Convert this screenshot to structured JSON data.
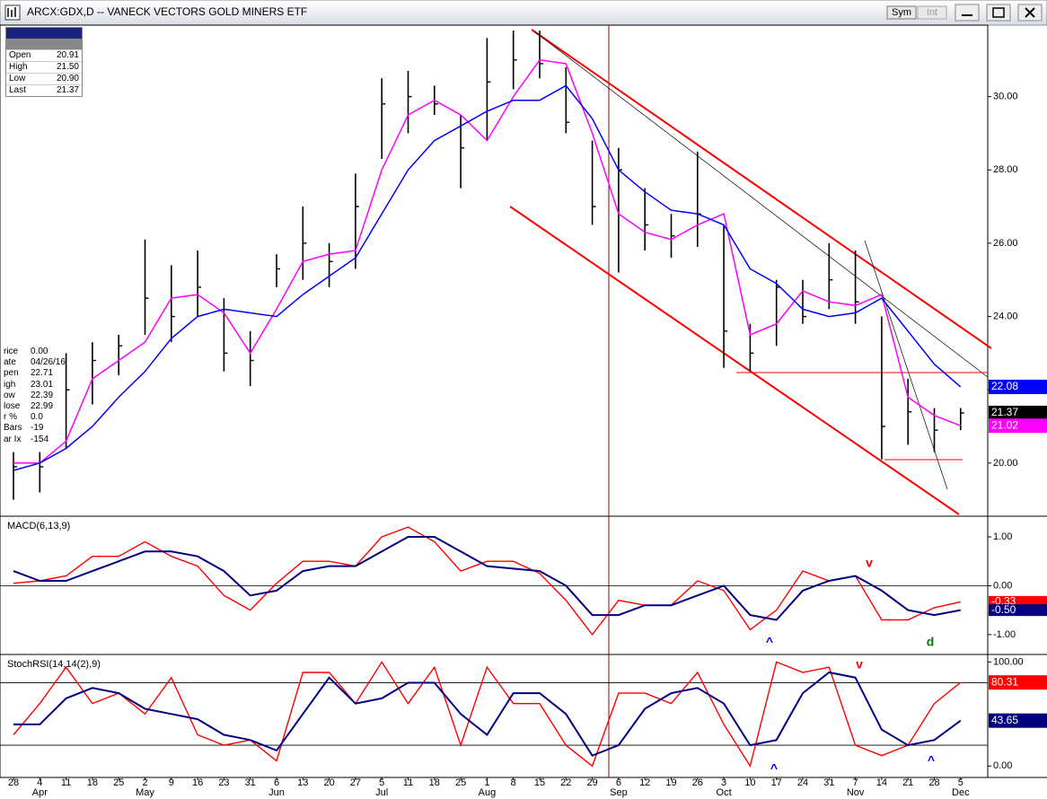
{
  "window": {
    "title": "ARCX:GDX,D -- VANECK VECTORS GOLD MINERS ETF",
    "buttons": [
      "Sym",
      "Int"
    ]
  },
  "info_box": {
    "rows": [
      [
        "Open",
        "20.91"
      ],
      [
        "High",
        "21.50"
      ],
      [
        "Low",
        "20.90"
      ],
      [
        "Last",
        "21.37"
      ]
    ]
  },
  "data_window": {
    "rows": [
      [
        "rice",
        "0.00"
      ],
      [
        "ate",
        "04/26/16"
      ],
      [
        "pen",
        "22.71"
      ],
      [
        "igh",
        "23.01"
      ],
      [
        "ow",
        "22.39"
      ],
      [
        "lose",
        "22.99"
      ],
      [
        "r %",
        "0.0"
      ],
      [
        "Bars",
        "-19"
      ],
      [
        "ar Ix",
        "-154"
      ]
    ]
  },
  "chart_data": [
    {
      "type": "ohlc",
      "categories": [
        "28",
        "4",
        "11",
        "18",
        "25",
        "2",
        "9",
        "16",
        "23",
        "31",
        "6",
        "13",
        "20",
        "27",
        "5",
        "11",
        "18",
        "25",
        "1",
        "8",
        "15",
        "22",
        "29",
        "6",
        "12",
        "19",
        "26",
        "3",
        "10",
        "17",
        "24",
        "31",
        "7",
        "14",
        "21",
        "28",
        "5"
      ],
      "months": [
        null,
        "Apr",
        null,
        null,
        null,
        "May",
        null,
        null,
        null,
        null,
        "Jun",
        null,
        null,
        null,
        "Jul",
        null,
        null,
        null,
        "Aug",
        null,
        null,
        null,
        null,
        "Sep",
        null,
        null,
        null,
        "Oct",
        null,
        null,
        null,
        null,
        "Nov",
        null,
        null,
        null,
        "Dec"
      ],
      "high": [
        20.3,
        20.3,
        23.0,
        23.3,
        23.5,
        26.1,
        25.4,
        25.8,
        24.5,
        23.6,
        25.7,
        27.0,
        26.0,
        27.9,
        30.5,
        30.7,
        30.3,
        29.5,
        31.6,
        31.8,
        31.8,
        30.8,
        28.8,
        28.6,
        27.5,
        26.8,
        28.5,
        26.5,
        23.8,
        25.0,
        25.0,
        26.0,
        25.8,
        24.0,
        22.3,
        21.5,
        21.5
      ],
      "low": [
        19.0,
        19.2,
        20.4,
        21.6,
        22.4,
        23.5,
        23.3,
        24.0,
        22.5,
        22.1,
        24.8,
        25.0,
        24.8,
        25.3,
        28.3,
        29.0,
        29.5,
        27.5,
        28.8,
        30.2,
        30.5,
        29.0,
        26.5,
        25.2,
        25.8,
        25.6,
        25.9,
        22.6,
        22.5,
        23.2,
        23.8,
        24.2,
        23.8,
        20.1,
        20.5,
        20.3,
        20.9
      ],
      "close": [
        19.9,
        19.9,
        22.0,
        22.8,
        23.2,
        24.5,
        24.0,
        24.8,
        23.0,
        22.8,
        25.3,
        26.0,
        25.5,
        27.0,
        29.8,
        30.0,
        29.8,
        28.6,
        30.4,
        31.0,
        30.9,
        29.3,
        27.0,
        28.0,
        26.5,
        26.2,
        26.8,
        23.6,
        23.0,
        24.8,
        24.0,
        25.0,
        24.4,
        21.0,
        21.4,
        20.9,
        21.37
      ],
      "color": "#000000",
      "series": [
        {
          "color": "#ff00ff",
          "values": [
            20.0,
            20.0,
            20.6,
            22.3,
            22.8,
            23.3,
            24.5,
            24.6,
            24.1,
            23.0,
            24.2,
            25.5,
            25.7,
            25.8,
            28.0,
            29.5,
            29.9,
            29.5,
            28.8,
            30.0,
            31.0,
            30.9,
            29.0,
            26.8,
            26.3,
            26.1,
            26.5,
            26.8,
            23.5,
            23.8,
            24.7,
            24.4,
            24.3,
            24.6,
            21.8,
            21.3,
            21.02
          ]
        },
        {
          "color": "#0000ff",
          "values": [
            19.8,
            20.0,
            20.4,
            21.0,
            21.8,
            22.5,
            23.4,
            24.0,
            24.2,
            24.1,
            24.0,
            24.6,
            25.1,
            25.6,
            26.8,
            28.0,
            28.8,
            29.2,
            29.6,
            29.9,
            29.9,
            30.3,
            29.4,
            28.0,
            27.4,
            26.9,
            26.8,
            26.5,
            25.3,
            24.9,
            24.2,
            24.0,
            24.1,
            24.5,
            23.6,
            22.7,
            22.08
          ]
        }
      ],
      "ylim": [
        18.6,
        31.95
      ],
      "yticks": [
        {
          "value": 20,
          "label": "20.00"
        },
        {
          "value": 22,
          "label": "22.00"
        },
        {
          "value": 24,
          "label": "24.00"
        },
        {
          "value": 26,
          "label": "26.00"
        },
        {
          "value": 28,
          "label": "28.00"
        },
        {
          "value": 30,
          "label": "30.00"
        }
      ],
      "flags": [
        {
          "value": 22.08,
          "label": "22.08",
          "color": "#0000ff"
        },
        {
          "value": 21.37,
          "label": "21.37",
          "color": "#000000"
        },
        {
          "value": 21.02,
          "label": "21.02",
          "color": "#ff00ff"
        }
      ]
    },
    {
      "type": "line",
      "title": "MACD(6,13,9)",
      "series": [
        {
          "color": "#ff0000",
          "values": [
            0.05,
            0.1,
            0.2,
            0.6,
            0.6,
            0.9,
            0.6,
            0.4,
            -0.2,
            -0.5,
            0.05,
            0.5,
            0.5,
            0.4,
            1.0,
            1.2,
            0.9,
            0.3,
            0.5,
            0.5,
            0.25,
            -0.3,
            -1.0,
            -0.3,
            -0.4,
            -0.4,
            0.1,
            -0.1,
            -0.9,
            -0.5,
            0.3,
            0.1,
            0.2,
            -0.7,
            -0.7,
            -0.45,
            -0.33
          ]
        },
        {
          "color": "#000080",
          "values": [
            0.3,
            0.1,
            0.1,
            0.3,
            0.5,
            0.7,
            0.7,
            0.6,
            0.3,
            -0.2,
            -0.1,
            0.3,
            0.4,
            0.4,
            0.7,
            1.0,
            1.0,
            0.7,
            0.4,
            0.35,
            0.3,
            0.0,
            -0.6,
            -0.6,
            -0.4,
            -0.4,
            -0.2,
            0.0,
            -0.6,
            -0.7,
            -0.1,
            0.1,
            0.2,
            -0.1,
            -0.5,
            -0.6,
            -0.5
          ]
        }
      ],
      "ylim": [
        -1.37,
        1.385
      ],
      "yticks": [
        {
          "value": -1,
          "label": "-1.00"
        },
        {
          "value": 0,
          "label": "0.00"
        },
        {
          "value": 1,
          "label": "1.00"
        }
      ],
      "hlines": [
        0
      ],
      "flags": [
        {
          "value": -0.33,
          "label": "-0.33",
          "color": "#ff0000"
        },
        {
          "value": -0.5,
          "label": "-0.50",
          "color": "#000080"
        }
      ],
      "annotations": [
        {
          "label": "^",
          "color": "#0000ff"
        },
        {
          "label": "v",
          "color": "#ff0000"
        },
        {
          "label": "d",
          "color": "#008000"
        }
      ]
    },
    {
      "type": "line",
      "title": "StochRSI(14,14(2),9)",
      "series": [
        {
          "color": "#ff0000",
          "values": [
            30,
            60,
            95,
            60,
            70,
            50,
            85,
            30,
            20,
            25,
            5,
            90,
            90,
            60,
            100,
            60,
            95,
            20,
            95,
            60,
            60,
            20,
            0,
            70,
            70,
            60,
            90,
            40,
            0,
            100,
            90,
            95,
            20,
            10,
            20,
            60,
            80.31
          ]
        },
        {
          "color": "#000080",
          "values": [
            40,
            40,
            65,
            75,
            70,
            55,
            50,
            45,
            30,
            25,
            15,
            50,
            85,
            60,
            65,
            80,
            80,
            50,
            30,
            70,
            70,
            50,
            10,
            20,
            55,
            70,
            75,
            60,
            20,
            25,
            70,
            90,
            85,
            35,
            20,
            25,
            43.65
          ]
        }
      ],
      "ylim": [
        -11,
        105.5
      ],
      "yticks": [
        {
          "value": 0,
          "label": "0.00"
        },
        {
          "value": 100,
          "label": "100.00"
        }
      ],
      "hlines": [
        80,
        20
      ],
      "flags": [
        {
          "value": 80.31,
          "label": "80.31",
          "color": "#ff0000"
        },
        {
          "value": 43.65,
          "label": "43.65",
          "color": "#000080"
        }
      ],
      "annotations": [
        {
          "label": "v",
          "color": "#ff0000"
        },
        {
          "label": "^",
          "color": "#0000ff"
        },
        {
          "label": "^",
          "color": "#0000ff"
        }
      ]
    }
  ]
}
